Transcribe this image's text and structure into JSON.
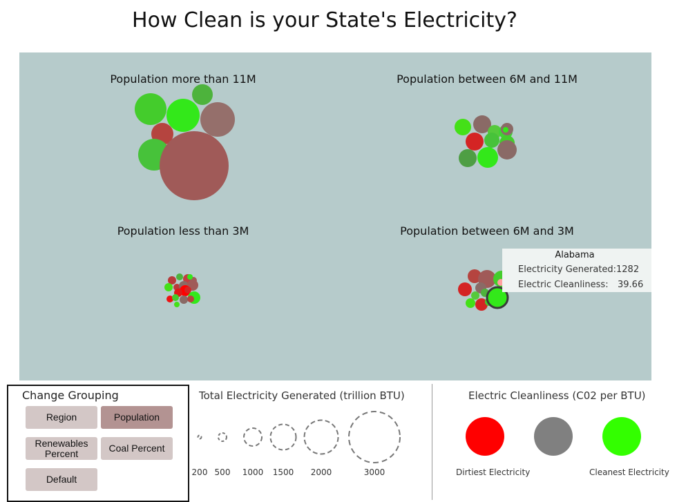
{
  "page_title": "How Clean is your State's Electricity?",
  "chart_data": {
    "type": "scatter",
    "title": "How Clean is your State's Electricity?",
    "encoding": {
      "size": "Total Electricity Generated (trillion BTU)",
      "color": "Electric Cleanliness (C02 per BTU)"
    },
    "groups": [
      {
        "label": "Population more than 11M",
        "bubble_count": 7
      },
      {
        "label": "Population between 6M and 11M",
        "bubble_count": 11
      },
      {
        "label": "Population less than 3M",
        "bubble_count": 20
      },
      {
        "label": "Population between 6M and 3M",
        "bubble_count": 12
      }
    ],
    "highlighted_state": {
      "name": "Alabama",
      "electricity_generated": 1282,
      "electric_cleanliness": 39.66
    }
  },
  "tooltip": {
    "name": "Alabama",
    "generated_label": "Electricity Generated:",
    "generated_value": "1282",
    "cleanliness_label": "Electric Cleanliness:",
    "cleanliness_value": "39.66"
  },
  "grouping": {
    "title": "Change Grouping",
    "buttons": {
      "region": "Region",
      "population": "Population",
      "renewables": "Renewables Percent",
      "coal": "Coal Percent",
      "default": "Default"
    },
    "active": "population"
  },
  "size_legend": {
    "title": "Total Electricity Generated (trillion BTU)",
    "ticks": [
      "200",
      "500",
      "1000",
      "1500",
      "2000",
      "3000"
    ]
  },
  "color_legend": {
    "title": "Electric Cleanliness (C02 per BTU)",
    "dirtiest_label": "Dirtiest Electricity",
    "cleanest_label": "Cleanest Electricity",
    "colors": {
      "dirtiest": "#ff0000",
      "neutral": "#808080",
      "cleanest": "#33ff00"
    }
  },
  "colors": {
    "plot_background": "#b6cbcb",
    "active_button": "#b39392",
    "button": "#d3c7c6"
  }
}
